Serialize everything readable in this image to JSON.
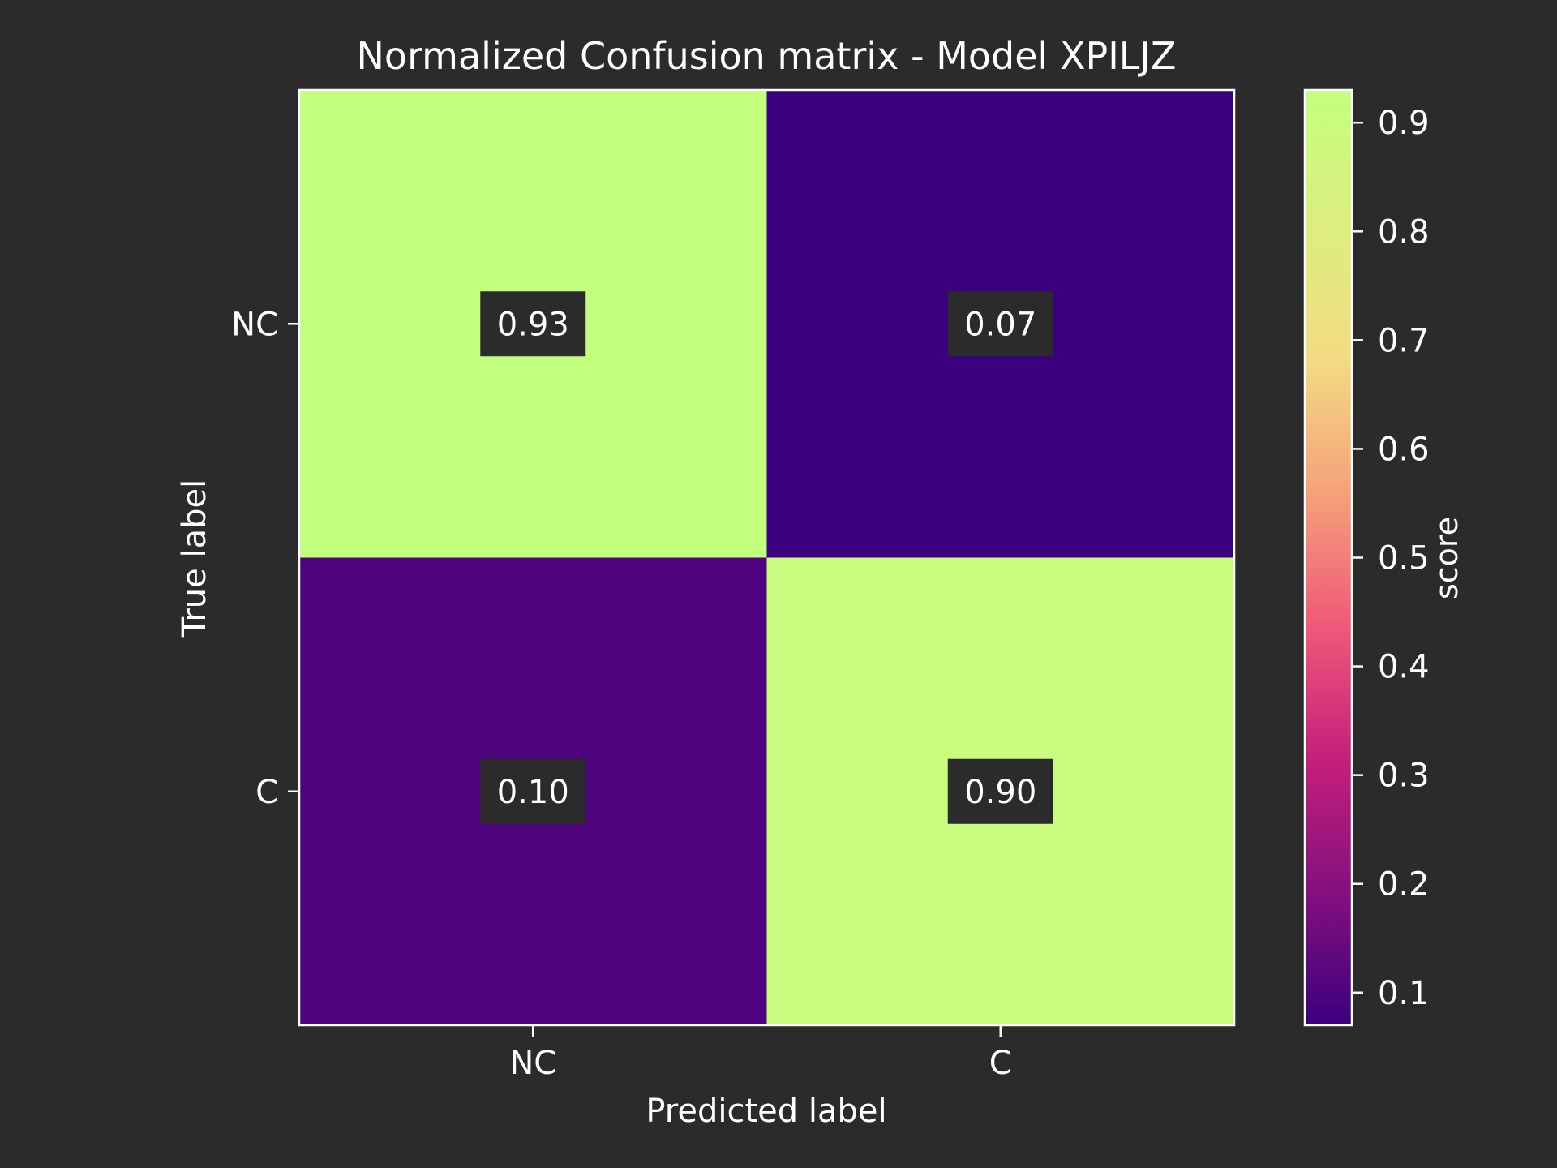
{
  "chart_data": {
    "type": "heatmap",
    "title": "Normalized Confusion matrix - Model XPILJZ",
    "xlabel": "Predicted label",
    "ylabel": "True label",
    "x_categories": [
      "NC",
      "C"
    ],
    "y_categories": [
      "NC",
      "C"
    ],
    "values": [
      [
        0.93,
        0.07
      ],
      [
        0.1,
        0.9
      ]
    ],
    "value_labels": [
      [
        "0.93",
        "0.07"
      ],
      [
        "0.10",
        "0.90"
      ]
    ],
    "colorbar": {
      "label": "score",
      "min": 0.07,
      "max": 0.93,
      "ticks": [
        0.1,
        0.2,
        0.3,
        0.4,
        0.5,
        0.6,
        0.7,
        0.8,
        0.9
      ],
      "tick_labels": [
        "0.1",
        "0.2",
        "0.3",
        "0.4",
        "0.5",
        "0.6",
        "0.7",
        "0.8",
        "0.9"
      ]
    },
    "colormap": [
      "#3b007d",
      "#85107f",
      "#c5207a",
      "#f05a78",
      "#f5a27a",
      "#f2dc82",
      "#dcee7e",
      "#c2ff7e"
    ],
    "colors": {
      "background": "#2b2b2b",
      "text": "#ffffff",
      "label_box": "#2b2b2b",
      "frame": "#ffffff"
    }
  }
}
